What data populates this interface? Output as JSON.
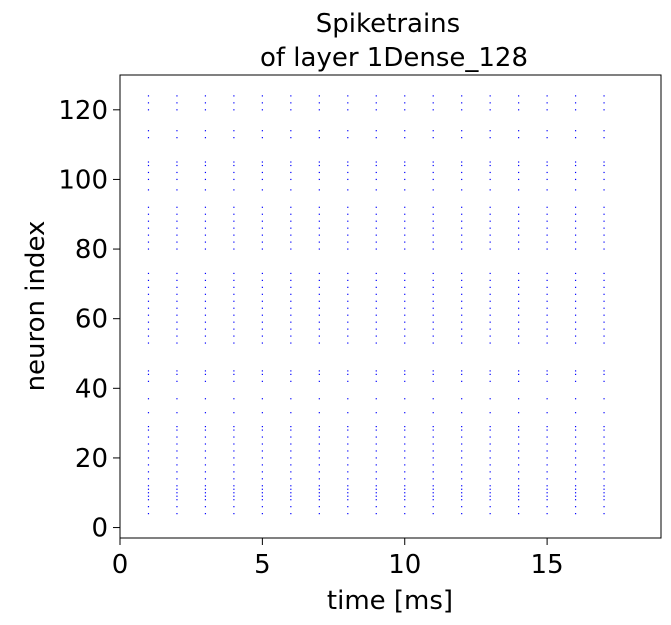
{
  "chart_data": {
    "type": "scatter",
    "title": "Spiketrains\nof layer 1Dense_128",
    "title_lines": [
      "Spiketrains",
      "of layer 1Dense_128"
    ],
    "xlabel": "time [ms]",
    "ylabel": "neuron index",
    "xlim": [
      0,
      19
    ],
    "ylim": [
      -3,
      130
    ],
    "xticks": [
      0,
      5,
      10,
      15
    ],
    "yticks": [
      0,
      20,
      40,
      60,
      80,
      100,
      120
    ],
    "grid": false,
    "legend": "none",
    "marker_color": "#0000ff",
    "series": [
      {
        "x": [
          1,
          2,
          3,
          4,
          5,
          6,
          7,
          8,
          9,
          10,
          11,
          12,
          13,
          14,
          15,
          16,
          17
        ],
        "neurons": [
          4,
          6,
          8,
          9,
          10,
          11,
          12,
          14,
          16,
          18,
          20,
          22,
          24,
          26,
          28,
          29,
          33,
          37,
          42,
          44,
          45,
          53,
          55,
          57,
          59,
          61,
          63,
          65,
          67,
          69,
          71,
          73,
          80,
          82,
          84,
          86,
          88,
          90,
          92,
          97,
          100,
          102,
          104,
          105,
          112,
          114,
          120,
          122,
          124
        ]
      }
    ]
  }
}
